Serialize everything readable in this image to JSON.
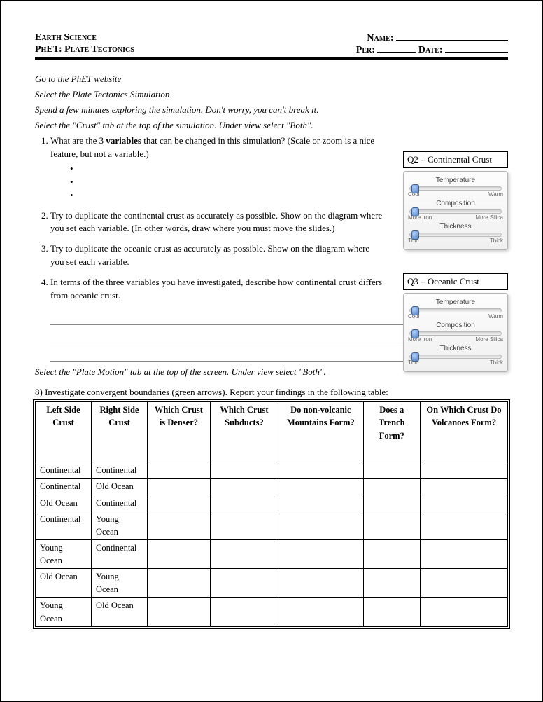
{
  "header": {
    "subject": "Earth Science",
    "title": "PhET:  Plate Tectonics",
    "name_label": "Name:",
    "per_label": "Per:",
    "date_label": "Date:"
  },
  "instructions": {
    "line1": "Go to the PhET website",
    "line2": "Select the Plate Tectonics Simulation",
    "line3": "Spend a few minutes exploring the simulation.  Don't worry, you can't break it.",
    "line4": "Select the \"Crust\" tab at the top of the simulation.  Under view select \"Both\".",
    "line5": "Select the \"Plate Motion\" tab at the top of the screen.  Under view select \"Both\"."
  },
  "questions": {
    "q1_pre": "What are the 3 ",
    "q1_bold": "variables",
    "q1_post": " that can be changed in this simulation?  (Scale or zoom is a nice feature, but not a variable.)",
    "q2": "Try to duplicate the continental crust as accurately as possible.  Show on the diagram where you set each variable.  (In other words, draw where you must move the slides.)",
    "q3": "Try to duplicate the oceanic crust as accurately as possible.  Show on the diagram where you set each variable.",
    "q4": "In terms of the three variables you have investigated, describe how continental crust differs from oceanic crust.",
    "q8": "8)  Investigate convergent boundaries (green arrows).  Report your findings in the following table:"
  },
  "panels": {
    "p1_title": "Q2 – Continental Crust",
    "p2_title": "Q3 – Oceanic Crust",
    "sliders": {
      "temperature": {
        "label": "Temperature",
        "left": "Cool",
        "right": "Warm"
      },
      "composition": {
        "label": "Composition",
        "left": "More Iron",
        "right": "More Silica"
      },
      "thickness": {
        "label": "Thickness",
        "left": "Thin",
        "right": "Thick"
      }
    },
    "thumb_positions": {
      "temperature": 2,
      "composition": 2,
      "thickness": 2
    },
    "colors": {
      "track_border": "#bbbbbb",
      "thumb_light": "#b0d0ff",
      "thumb_dark": "#5080c0"
    }
  },
  "table": {
    "headers": [
      "Left Side Crust",
      "Right Side Crust",
      "Which Crust is Denser?",
      "Which Crust Subducts?",
      "Do non-volcanic Mountains Form?",
      "Does a Trench Form?",
      "On Which Crust Do Volcanoes Form?"
    ],
    "rows": [
      [
        "Continental",
        "Continental",
        "",
        "",
        "",
        "",
        ""
      ],
      [
        "Continental",
        "Old Ocean",
        "",
        "",
        "",
        "",
        ""
      ],
      [
        "Old Ocean",
        "Continental",
        "",
        "",
        "",
        "",
        ""
      ],
      [
        "Continental",
        "Young Ocean",
        "",
        "",
        "",
        "",
        ""
      ],
      [
        "Young Ocean",
        "Continental",
        "",
        "",
        "",
        "",
        ""
      ],
      [
        "Old Ocean",
        "Young Ocean",
        "",
        "",
        "",
        "",
        ""
      ],
      [
        "Young Ocean",
        "Old Ocean",
        "",
        "",
        "",
        "",
        ""
      ]
    ]
  }
}
